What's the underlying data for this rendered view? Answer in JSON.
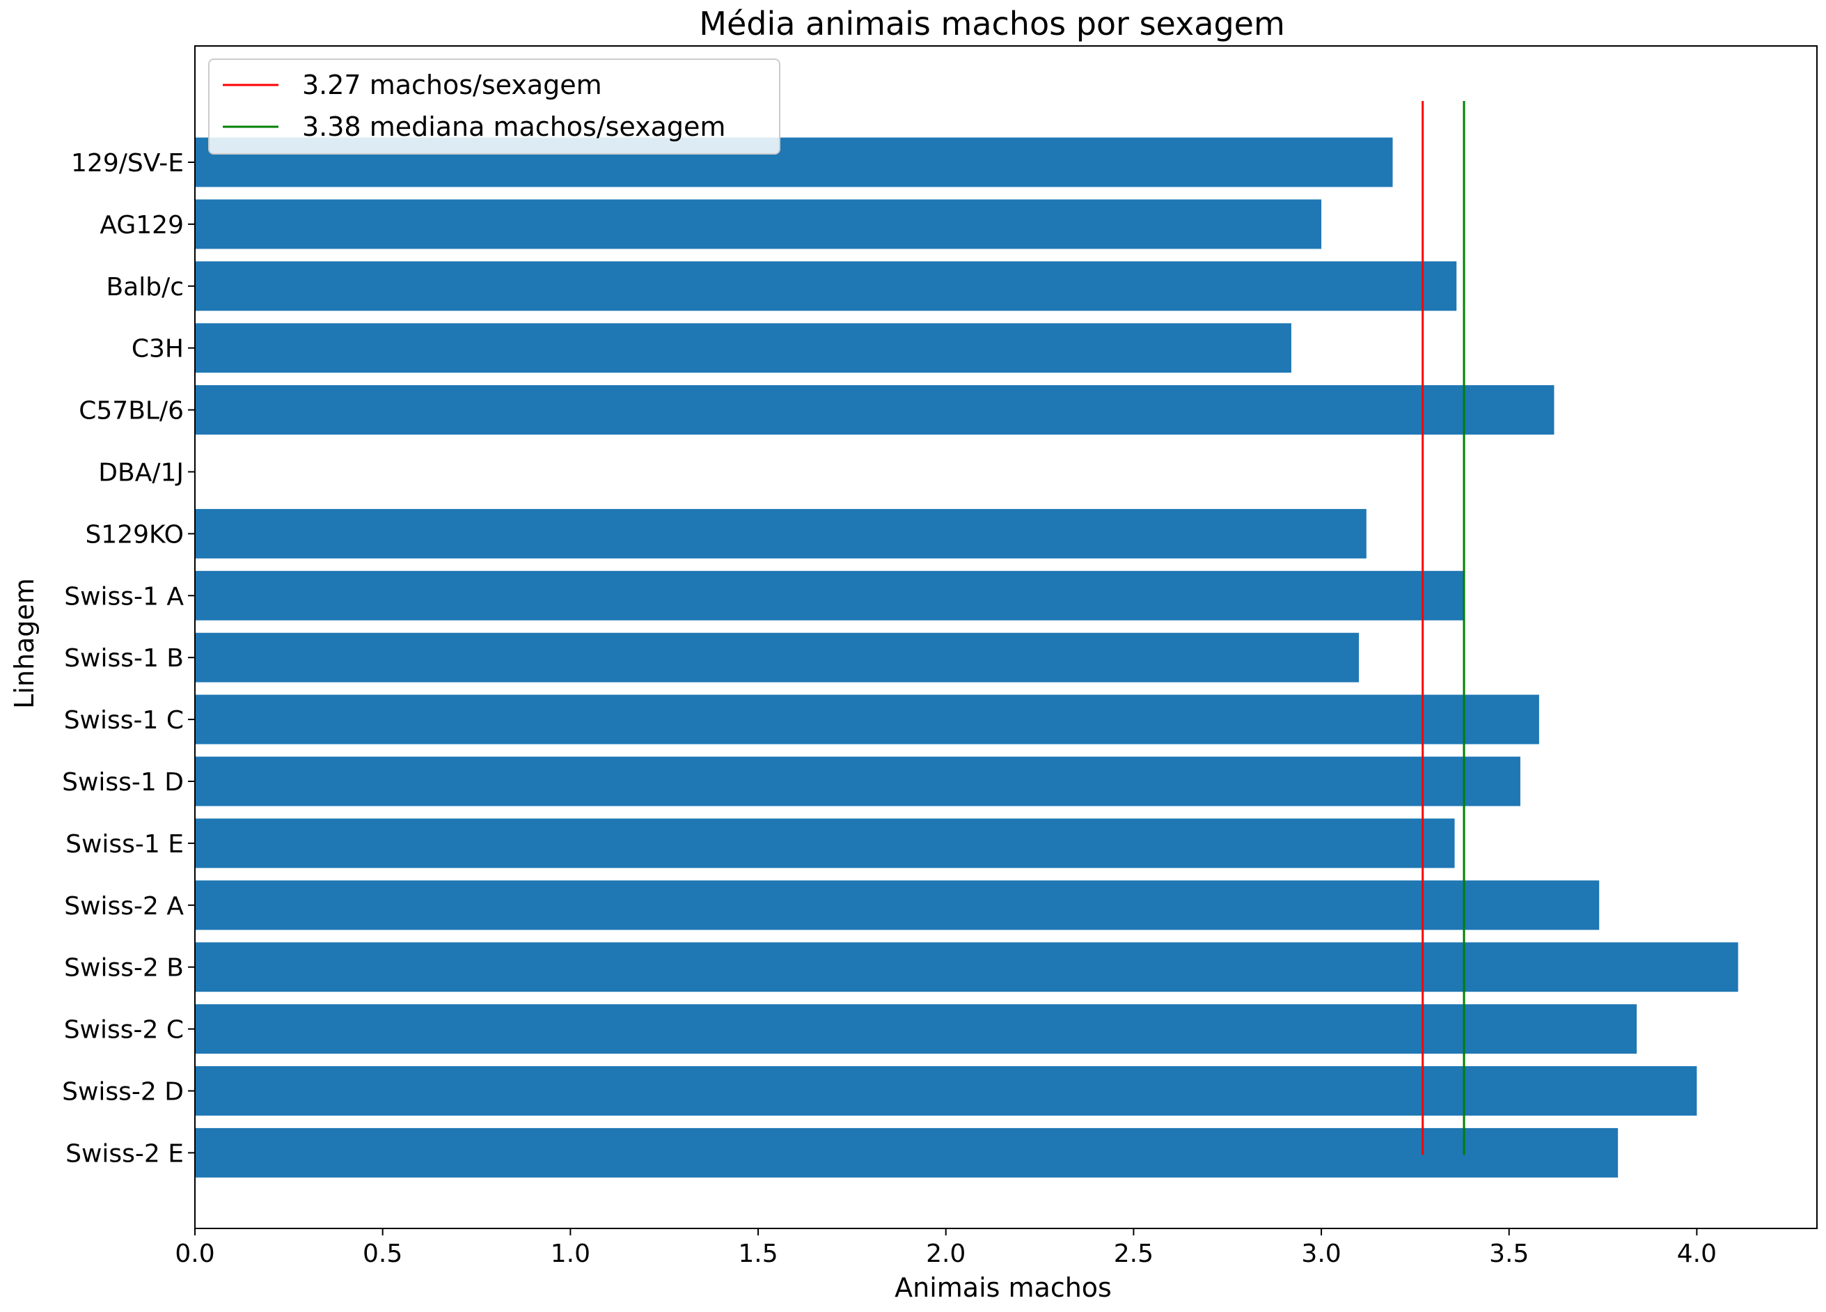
{
  "chart_data": {
    "type": "bar",
    "orientation": "horizontal",
    "title": "Média animais machos por sexagem",
    "xlabel": "Animais machos",
    "ylabel": "Linhagem",
    "xlim": [
      0,
      4.32
    ],
    "x_ticks": [
      "0.0",
      "0.5",
      "1.0",
      "1.5",
      "2.0",
      "2.5",
      "3.0",
      "3.5",
      "4.0"
    ],
    "categories": [
      "129/SV-E",
      "AG129",
      "Balb/c",
      "C3H",
      "C57BL/6",
      "DBA/1J",
      "S129KO",
      "Swiss-1 A",
      "Swiss-1 B",
      "Swiss-1 C",
      "Swiss-1 D",
      "Swiss-1 E",
      "Swiss-2 A",
      "Swiss-2 B",
      "Swiss-2 C",
      "Swiss-2 D",
      "Swiss-2 E"
    ],
    "values": [
      3.19,
      3.0,
      3.36,
      2.92,
      3.62,
      0,
      3.12,
      3.38,
      3.1,
      3.58,
      3.53,
      3.355,
      3.74,
      4.11,
      3.84,
      4.0,
      3.79
    ],
    "bar_color": "#1f77b4",
    "reference_lines": [
      {
        "label": "3.27 machos/sexagem",
        "value": 3.27,
        "color": "#ff0000"
      },
      {
        "label": "3.38 mediana machos/sexagem",
        "value": 3.38,
        "color": "#008000"
      }
    ],
    "legend_position": "top-left",
    "grid": false
  }
}
